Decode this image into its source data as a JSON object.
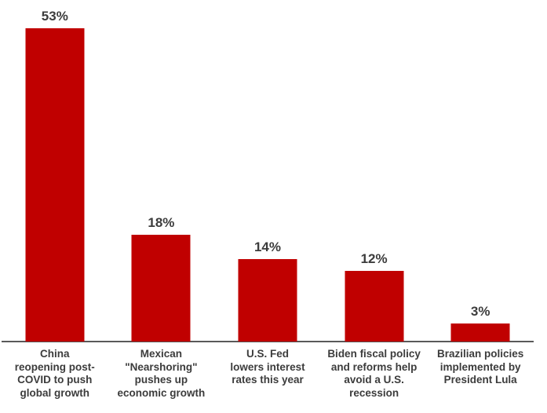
{
  "chart_data": {
    "type": "bar",
    "title": "",
    "xlabel": "",
    "ylabel": "",
    "categories": [
      "China reopening post-COVID to push global growth",
      "Mexican \"Nearshoring\" pushes up economic growth",
      "U.S. Fed lowers interest rates this year",
      "Biden fiscal policy and reforms help avoid a U.S. recession",
      "Brazilian policies implemented by President Lula"
    ],
    "category_lines": [
      [
        "China",
        "reopening post-",
        "COVID to push",
        "global growth"
      ],
      [
        "Mexican",
        "\"Nearshoring\"",
        "pushes up",
        "economic growth"
      ],
      [
        "U.S. Fed",
        "lowers interest",
        "rates this year"
      ],
      [
        "Biden fiscal policy",
        "and reforms help",
        "avoid a U.S.",
        "recession"
      ],
      [
        "Brazilian policies",
        "implemented by",
        "President Lula"
      ]
    ],
    "values": [
      53,
      18,
      14,
      12,
      3
    ],
    "data_labels": [
      "53%",
      "18%",
      "14%",
      "12%",
      "3%"
    ],
    "ylim": [
      0,
      58
    ],
    "grid": false,
    "legend": false,
    "colors": {
      "bar": "#C00000",
      "data_label": "#3c3c3c",
      "category_label": "#3c3c3c",
      "axis_line": "#595959",
      "background": "#FFFFFF"
    }
  }
}
